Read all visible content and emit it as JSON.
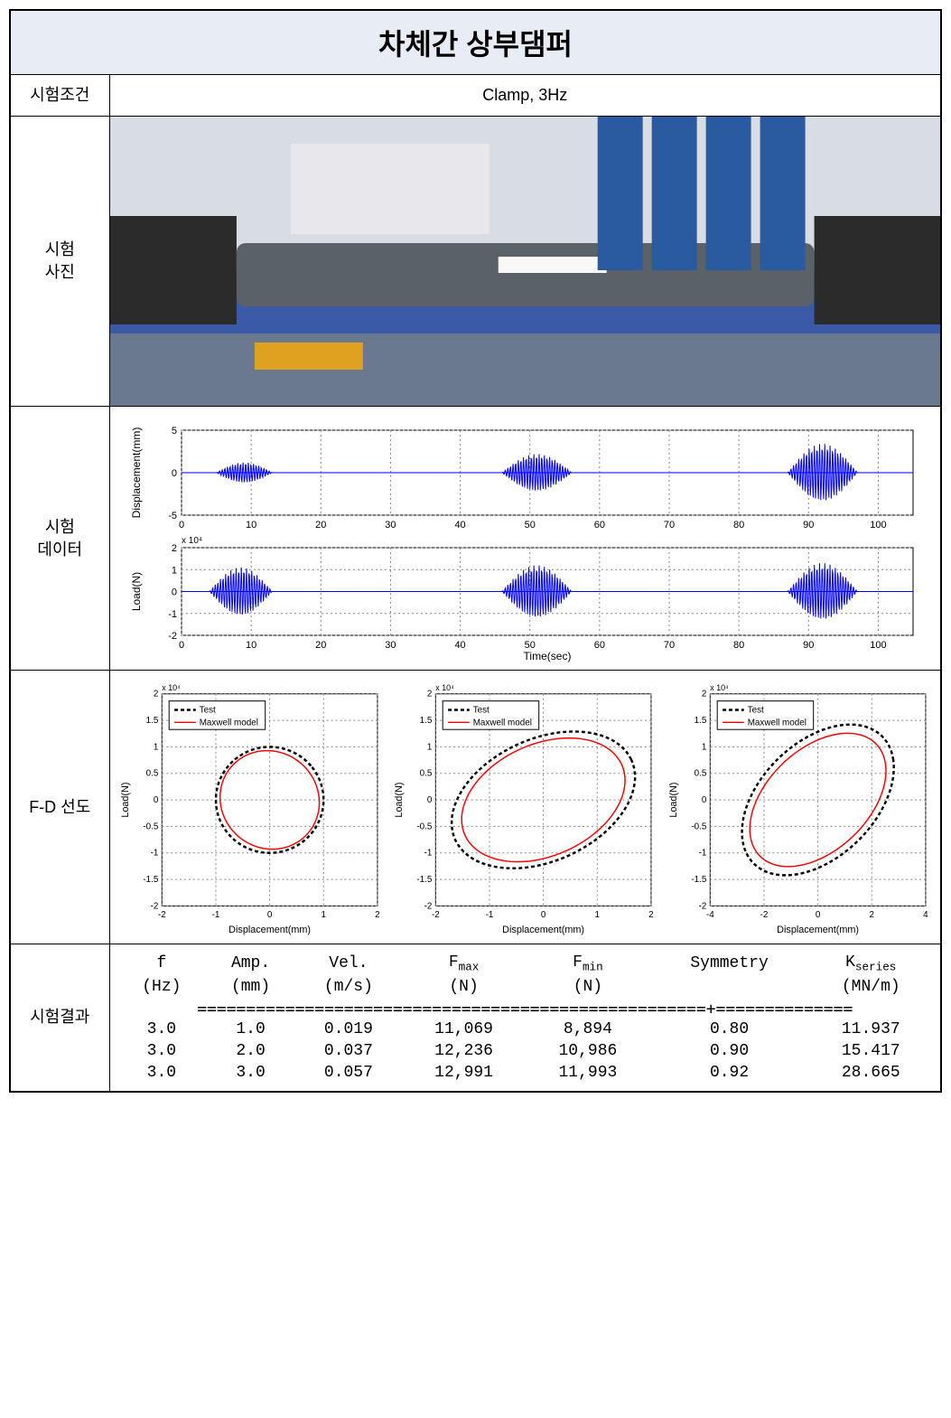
{
  "title": "차체간 상부댐퍼",
  "rows": {
    "condition_label": "시험조건",
    "photo_label": "시험\n사진",
    "data_label": "시험\n데이터",
    "fd_label": "F-D 선도",
    "result_label": "시험결과"
  },
  "condition_value": "Clamp,  3Hz",
  "timeseries": {
    "disp": {
      "ylabel": "Displacement(mm)",
      "ylim": [
        -5,
        5
      ],
      "yticks": [
        -5,
        0,
        5
      ],
      "xlim": [
        0,
        105
      ],
      "xticks": [
        0,
        10,
        20,
        30,
        40,
        50,
        60,
        70,
        80,
        90,
        100
      ],
      "bursts": [
        {
          "t0": 5,
          "t1": 13,
          "amp": 1.2
        },
        {
          "t0": 46,
          "t1": 56,
          "amp": 2.2
        },
        {
          "t0": 87,
          "t1": 97,
          "amp": 3.4
        }
      ],
      "line_color": "#0000ff",
      "grid_color": "#888",
      "bg": "#ffffff"
    },
    "load": {
      "ylabel": "Load(N)",
      "y_exp_label": "x 10⁴",
      "ylim": [
        -2,
        2
      ],
      "yticks": [
        -2,
        -1,
        0,
        1,
        2
      ],
      "xlim": [
        0,
        105
      ],
      "xticks": [
        0,
        10,
        20,
        30,
        40,
        50,
        60,
        70,
        80,
        90,
        100
      ],
      "xlabel": "Time(sec)",
      "bursts": [
        {
          "t0": 4,
          "t1": 13,
          "amp": 1.1
        },
        {
          "t0": 46,
          "t1": 56,
          "amp": 1.2
        },
        {
          "t0": 87,
          "t1": 97,
          "amp": 1.3
        }
      ],
      "line_color": "#0000ff",
      "grid_color": "#888",
      "bg": "#ffffff"
    }
  },
  "fd_plots": {
    "legend": {
      "test": "Test",
      "model": "Maxwell model"
    },
    "test_style": {
      "color": "#000",
      "dash": "4,3",
      "width": 2.5
    },
    "model_style": {
      "color": "#ff0000",
      "dash": "",
      "width": 1.5
    },
    "ylabel": "Load(N)",
    "xlabel": "Displacement(mm)",
    "y_exp_label": "x 10⁴",
    "ylim": [
      -2,
      2
    ],
    "yticks": [
      -2,
      -1.5,
      -1,
      -0.5,
      0,
      0.5,
      1,
      1.5,
      2
    ],
    "panels": [
      {
        "xlim": [
          -2,
          2
        ],
        "xticks": [
          -2,
          -1,
          0,
          1,
          2
        ],
        "test_rx": 1.0,
        "test_ry": 1.0,
        "model_rx": 0.9,
        "model_ry": 0.95,
        "angle": 40
      },
      {
        "xlim": [
          -2,
          2
        ],
        "xticks": [
          -2,
          -1,
          0,
          1,
          2
        ],
        "test_rx": 1.8,
        "test_ry": 1.15,
        "model_rx": 1.6,
        "model_ry": 1.05,
        "angle": 25
      },
      {
        "xlim": [
          -4,
          4
        ],
        "xticks": [
          -4,
          -2,
          0,
          2,
          4
        ],
        "test_rx": 2.9,
        "test_ry": 1.25,
        "model_rx": 2.6,
        "model_ry": 1.1,
        "angle": 15
      }
    ]
  },
  "results": {
    "headers": [
      "f",
      "Amp.",
      "Vel.",
      "Fmax",
      "Fmin",
      "Symmetry",
      "Kseries"
    ],
    "units": [
      "(Hz)",
      "(mm)",
      "(m/s)",
      "(N)",
      "(N)",
      "",
      "(MN/m)"
    ],
    "sep": "====================================================+==============",
    "rows": [
      [
        "3.0",
        "1.0",
        "0.019",
        "11,069",
        "8,894",
        "0.80",
        "11.937"
      ],
      [
        "3.0",
        "2.0",
        "0.037",
        "12,236",
        "10,986",
        "0.90",
        "15.417"
      ],
      [
        "3.0",
        "3.0",
        "0.057",
        "12,991",
        "11,993",
        "0.92",
        "28.665"
      ]
    ]
  },
  "colors": {
    "title_bg": "#e8ecf4",
    "border": "#000000",
    "text": "#000000"
  }
}
